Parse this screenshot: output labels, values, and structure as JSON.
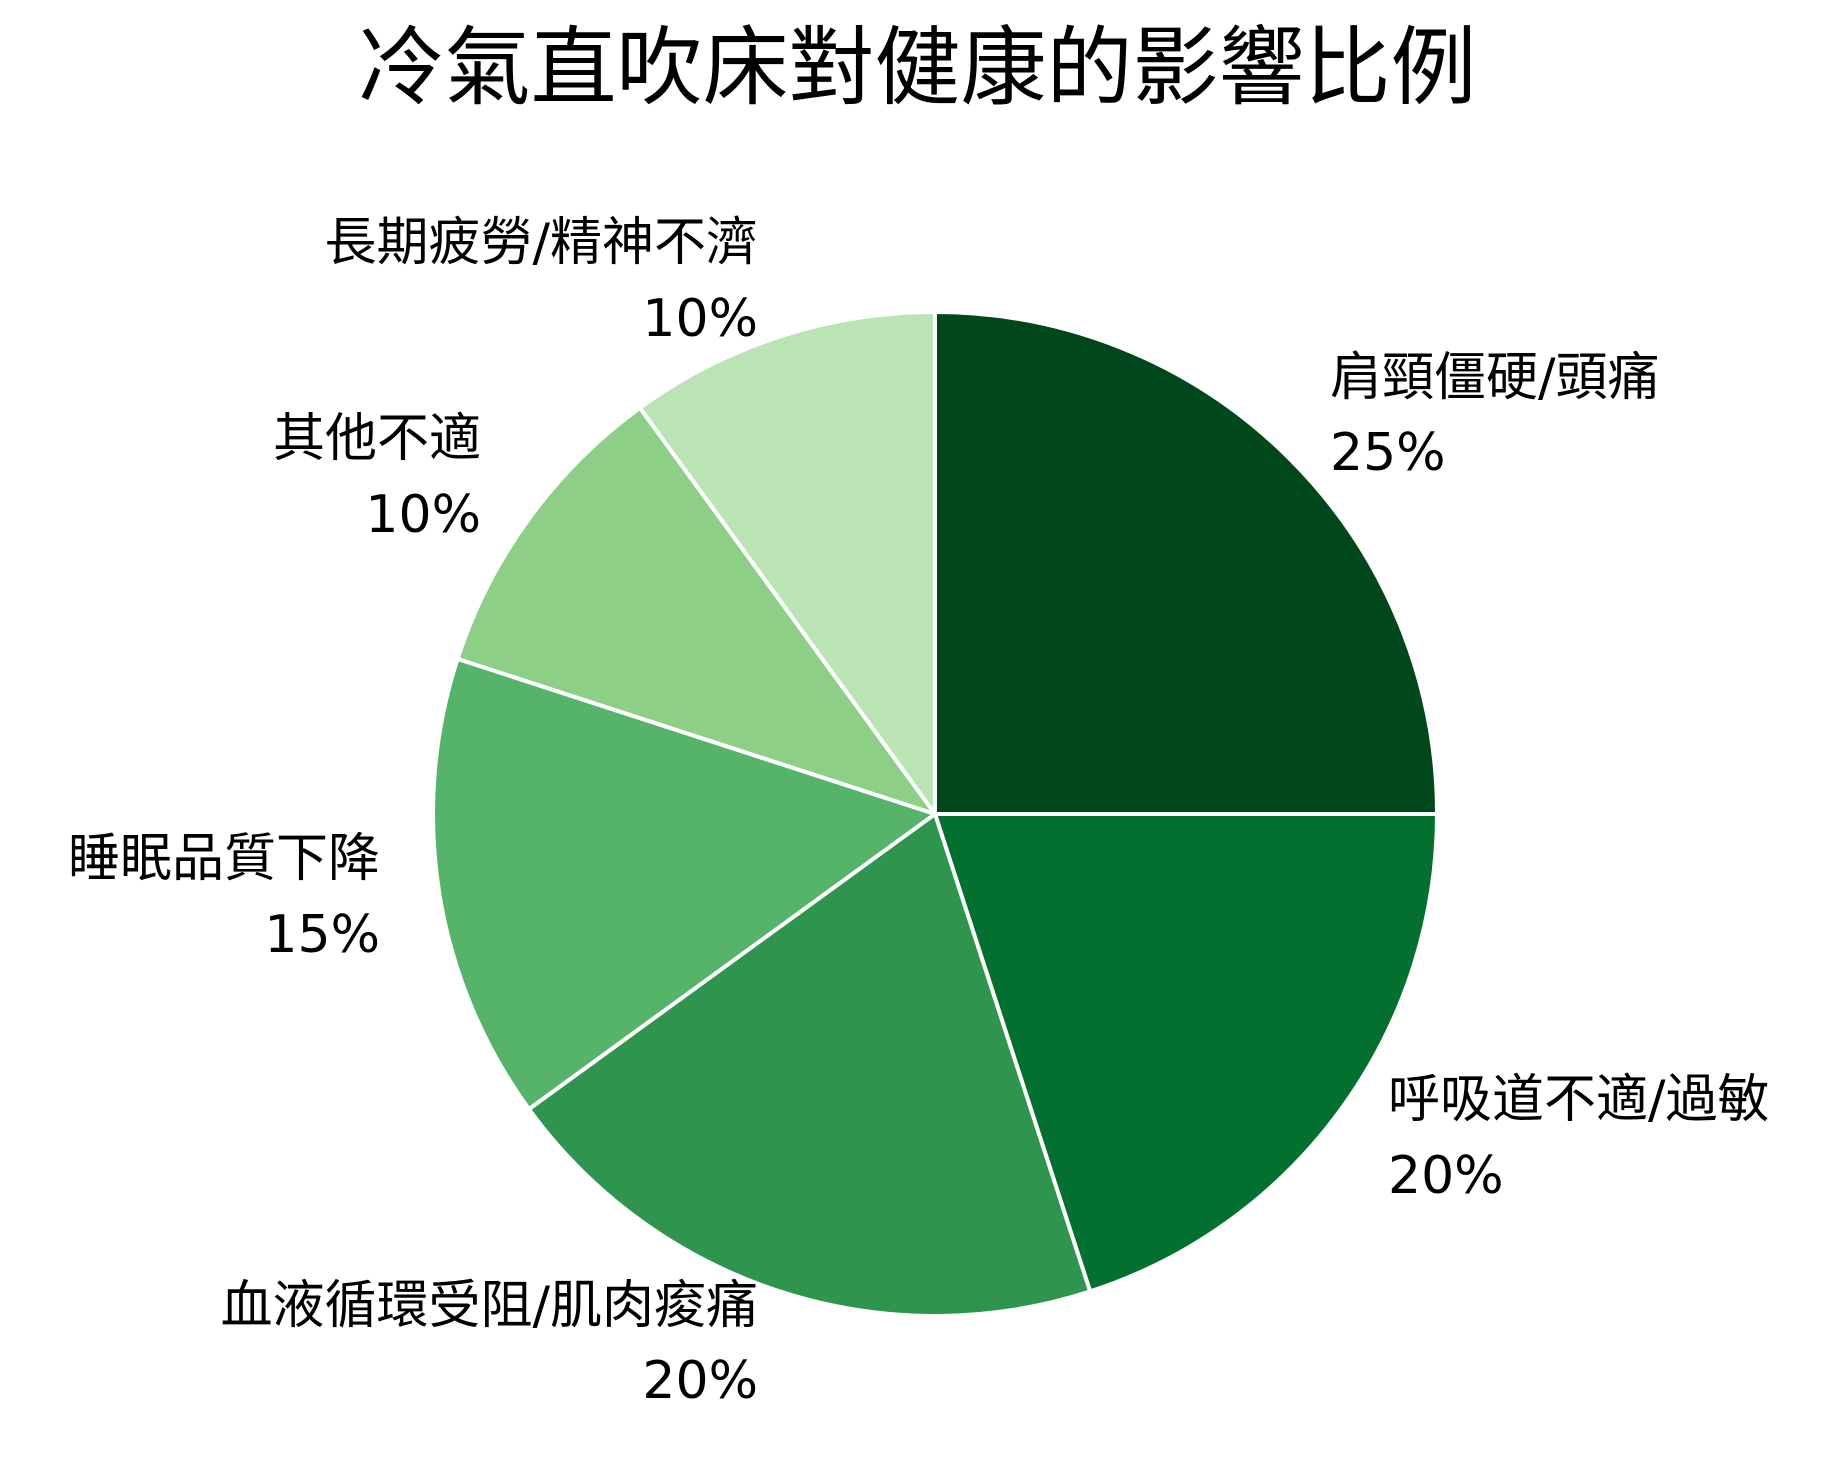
{
  "chart_data": {
    "type": "pie",
    "title": "冷氣直吹床對健康的影響比例",
    "slices": [
      {
        "label": "肩頸僵硬/頭痛",
        "value": 25,
        "value_label": "25%",
        "color": "#00471b"
      },
      {
        "label": "呼吸道不適/過敏",
        "value": 20,
        "value_label": "20%",
        "color": "#04702f"
      },
      {
        "label": "血液循環受阻/肌肉痠痛",
        "value": 20,
        "value_label": "20%",
        "color": "#2e944e"
      },
      {
        "label": "睡眠品質下降",
        "value": 15,
        "value_label": "15%",
        "color": "#56b46a"
      },
      {
        "label": "其他不適",
        "value": 10,
        "value_label": "10%",
        "color": "#8ecf88"
      },
      {
        "label": "長期疲勞/精神不濟",
        "value": 10,
        "value_label": "10%",
        "color": "#bae4b3"
      }
    ],
    "start_angle": "12 o'clock",
    "direction": "clockwise",
    "legend": "none",
    "slice_border_color": "#ffffff"
  }
}
